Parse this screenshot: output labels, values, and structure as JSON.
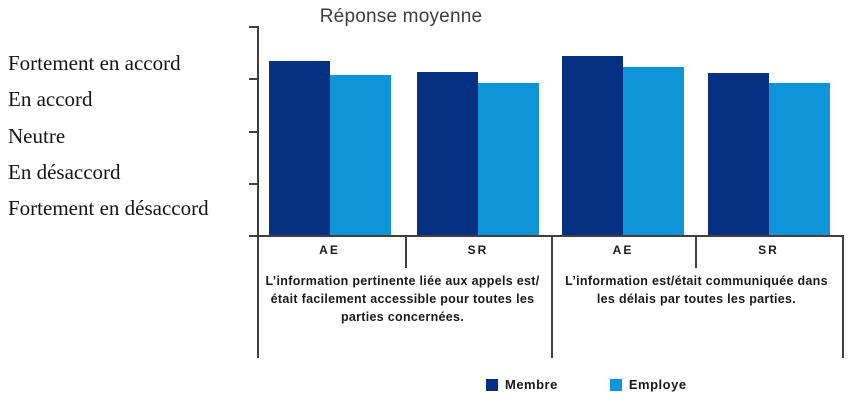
{
  "title": "Réponse moyenne",
  "colors": {
    "membre": "#063183",
    "employe": "#0E94D7",
    "axis": "#3f3f3f"
  },
  "chart_data": {
    "type": "bar",
    "title": "Réponse moyenne",
    "y_axis": {
      "labels": [
        "Fortement en accord",
        "En accord",
        "Neutre",
        "En désaccord",
        "Fortement en désaccord"
      ],
      "scale_min": 1,
      "scale_max": 5,
      "note": "Likert scale: bottom of axis = Fortement en désaccord (1), top = Fortement en accord (5)"
    },
    "x_categories": [
      "AE",
      "SR",
      "AE",
      "SR"
    ],
    "groups": [
      {
        "question": "L’information pertinente liée aux appels est/était facilement accessible pour toutes les parties concernées.",
        "categories": [
          "AE",
          "SR"
        ]
      },
      {
        "question": "L’information est/était communiquée dans les délais par toutes les parties.",
        "categories": [
          "AE",
          "SR"
        ]
      }
    ],
    "series": [
      {
        "name": "Membre",
        "color": "#063183",
        "values": [
          4.33,
          4.12,
          4.43,
          4.11
        ]
      },
      {
        "name": "Employe",
        "color": "#0E94D7",
        "values": [
          4.06,
          3.91,
          4.21,
          3.9
        ]
      }
    ],
    "legend_position": "bottom",
    "grid": false
  },
  "legend": {
    "items": [
      {
        "label": "Membre",
        "color": "#063183"
      },
      {
        "label": "Employe",
        "color": "#0E94D7"
      }
    ]
  }
}
